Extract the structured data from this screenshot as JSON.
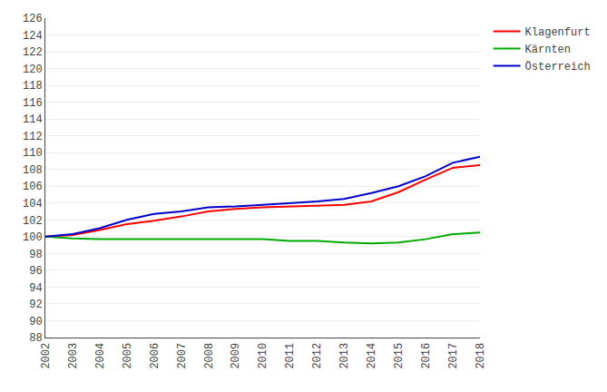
{
  "chart_data": {
    "type": "line",
    "x": [
      2002,
      2003,
      2004,
      2005,
      2006,
      2007,
      2008,
      2009,
      2010,
      2011,
      2012,
      2013,
      2014,
      2015,
      2016,
      2017,
      2018
    ],
    "series": [
      {
        "name": "Klagenfurt",
        "color": "#FF0000",
        "values": [
          100.0,
          100.2,
          100.8,
          101.5,
          101.9,
          102.4,
          103.0,
          103.3,
          103.5,
          103.6,
          103.7,
          103.8,
          104.2,
          105.3,
          106.8,
          108.2,
          108.5
        ]
      },
      {
        "name": "Kärnten",
        "color": "#00AA00",
        "values": [
          100.0,
          99.8,
          99.7,
          99.7,
          99.7,
          99.7,
          99.7,
          99.7,
          99.7,
          99.5,
          99.5,
          99.3,
          99.2,
          99.3,
          99.7,
          100.3,
          100.5
        ]
      },
      {
        "name": "Österreich",
        "color": "#0000CC",
        "values": [
          100.0,
          100.3,
          101.0,
          102.0,
          102.7,
          103.0,
          103.5,
          103.6,
          103.8,
          104.0,
          104.2,
          104.5,
          105.2,
          106.0,
          107.2,
          108.8,
          109.5
        ]
      }
    ],
    "xlim": [
      2002,
      2018
    ],
    "xticks": [
      2002,
      2003,
      2004,
      2005,
      2006,
      2007,
      2008,
      2009,
      2010,
      2011,
      2012,
      2013,
      2014,
      2015,
      2016,
      2017,
      2018
    ],
    "ylim": [
      88,
      126
    ],
    "yticks": [
      88,
      90,
      92,
      94,
      96,
      98,
      100,
      102,
      104,
      106,
      108,
      110,
      112,
      114,
      116,
      118,
      120,
      122,
      124,
      126
    ],
    "grid": "y",
    "legend": "right"
  }
}
